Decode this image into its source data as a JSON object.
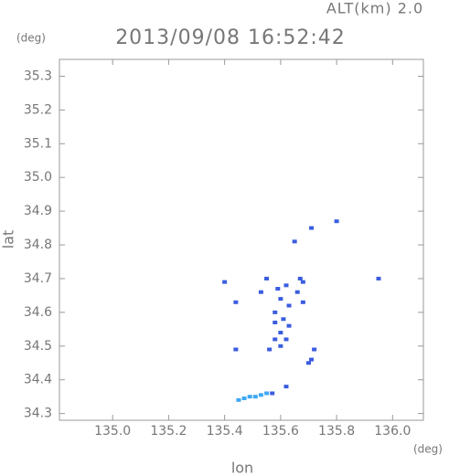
{
  "chart_data": {
    "type": "scatter",
    "title": "2013/09/08 16:52:42",
    "subtitle": "ALT(km) 2.0",
    "y_unit": "(deg)",
    "x_unit": "(deg)",
    "x_label": "lon",
    "y_label": "lat",
    "xlim": [
      134.81,
      136.11
    ],
    "ylim": [
      34.28,
      35.35
    ],
    "xticks": [
      {
        "value": 135,
        "label": "135.0"
      },
      135.2,
      135.4,
      135.6,
      135.8,
      {
        "value": 136,
        "label": "136.0"
      }
    ],
    "yticks": [
      34.3,
      34.4,
      34.5,
      34.6,
      34.7,
      34.8,
      34.9,
      {
        "value": 35,
        "label": "35.0"
      },
      35.1,
      35.2,
      35.3
    ],
    "series": [
      {
        "color": "#3a5ce0",
        "x": [
          135.8,
          135.71,
          135.65,
          135.4,
          135.95,
          135.55,
          135.62,
          135.67,
          135.68,
          135.59,
          135.66,
          135.53,
          135.44,
          135.6,
          135.63,
          135.68,
          135.58,
          135.61,
          135.63,
          135.58,
          135.6,
          135.58,
          135.6,
          135.62,
          135.56,
          135.72,
          135.71,
          135.7,
          135.44,
          135.62,
          135.57
        ],
        "values": [
          34.87,
          34.85,
          34.81,
          34.69,
          34.7,
          34.7,
          34.68,
          34.7,
          34.69,
          34.67,
          34.66,
          34.66,
          34.63,
          34.64,
          34.62,
          34.63,
          34.6,
          34.58,
          34.56,
          34.57,
          34.54,
          34.52,
          34.5,
          34.52,
          34.49,
          34.49,
          34.46,
          34.45,
          34.49,
          34.38,
          34.36
        ]
      },
      {
        "color": "#3fa9f5",
        "x": [
          135.45,
          135.47,
          135.49,
          135.51,
          135.53,
          135.55
        ],
        "values": [
          34.34,
          34.345,
          34.35,
          34.35,
          34.355,
          34.36
        ]
      }
    ]
  }
}
